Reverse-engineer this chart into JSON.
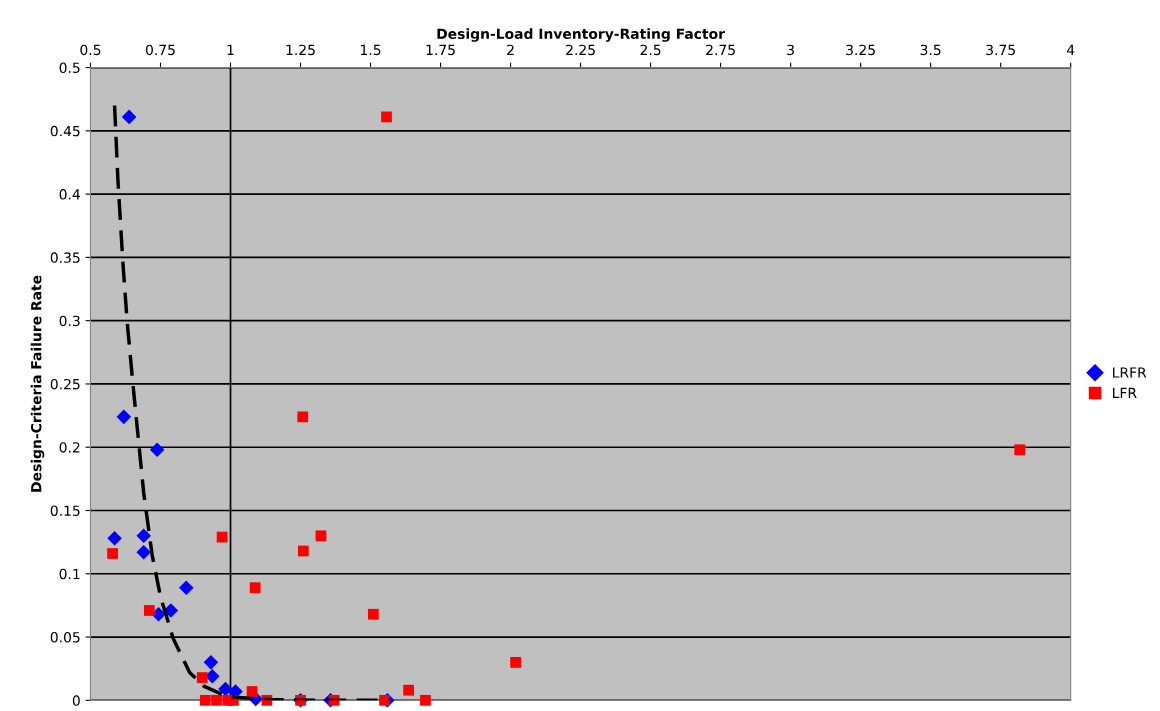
{
  "chart_data": {
    "type": "scatter",
    "xlabel": "Design-Load Inventory-Rating Factor",
    "ylabel": "Design-Criteria Failure Rate",
    "xlim": [
      0.5,
      4
    ],
    "xticks": [
      0.5,
      0.75,
      1,
      1.25,
      1.5,
      1.75,
      2,
      2.25,
      2.5,
      2.75,
      3,
      3.25,
      3.5,
      3.75,
      4
    ],
    "ylim": [
      0,
      0.5
    ],
    "yticks": [
      0,
      0.05,
      0.1,
      0.15,
      0.2,
      0.25,
      0.3,
      0.35,
      0.4,
      0.45,
      0.5
    ],
    "grid": "y",
    "legend": "right",
    "ref_lines": [
      {
        "axis": "x",
        "value": 1,
        "color": "#000000"
      }
    ],
    "series": [
      {
        "name": "LRFR",
        "color": "#0000ff",
        "marker": "diamond",
        "x": [
          0.638,
          0.619,
          0.738,
          0.586,
          0.69,
          0.69,
          0.842,
          0.743,
          0.787,
          0.93,
          0.935,
          0.982,
          1.018,
          1.09,
          1.25,
          1.357,
          1.56
        ],
        "values": [
          0.461,
          0.224,
          0.198,
          0.128,
          0.13,
          0.117,
          0.089,
          0.068,
          0.071,
          0.03,
          0.019,
          0.009,
          0.007,
          0.001,
          0,
          0,
          0
        ]
      },
      {
        "name": "LFR",
        "color": "#ff0000",
        "marker": "square",
        "x": [
          0.579,
          0.71,
          0.97,
          1.088,
          1.258,
          1.26,
          1.323,
          0.899,
          1.077,
          1.557,
          1.51,
          2.018,
          3.818,
          0.91,
          0.95,
          0.99,
          1.01,
          1.13,
          1.25,
          1.37,
          1.55,
          1.636,
          1.696
        ],
        "values": [
          0.116,
          0.071,
          0.129,
          0.089,
          0.224,
          0.118,
          0.13,
          0.018,
          0.007,
          0.461,
          0.068,
          0.03,
          0.198,
          0,
          0,
          0,
          0,
          0,
          0,
          0,
          0,
          0.008,
          0
        ]
      },
      {
        "type": "line",
        "color": "#000000",
        "line_style": "dashed",
        "marker": "none",
        "x": [
          0.586,
          0.598,
          0.616,
          0.631,
          0.649,
          0.668,
          0.69,
          0.72,
          0.75,
          0.795,
          0.854,
          0.906,
          0.988,
          1.137,
          1.35,
          1.57
        ],
        "values": [
          0.47,
          0.411,
          0.345,
          0.299,
          0.256,
          0.213,
          0.164,
          0.115,
          0.082,
          0.049,
          0.022,
          0.011,
          0.003,
          0.0005,
          0,
          0
        ]
      }
    ]
  }
}
